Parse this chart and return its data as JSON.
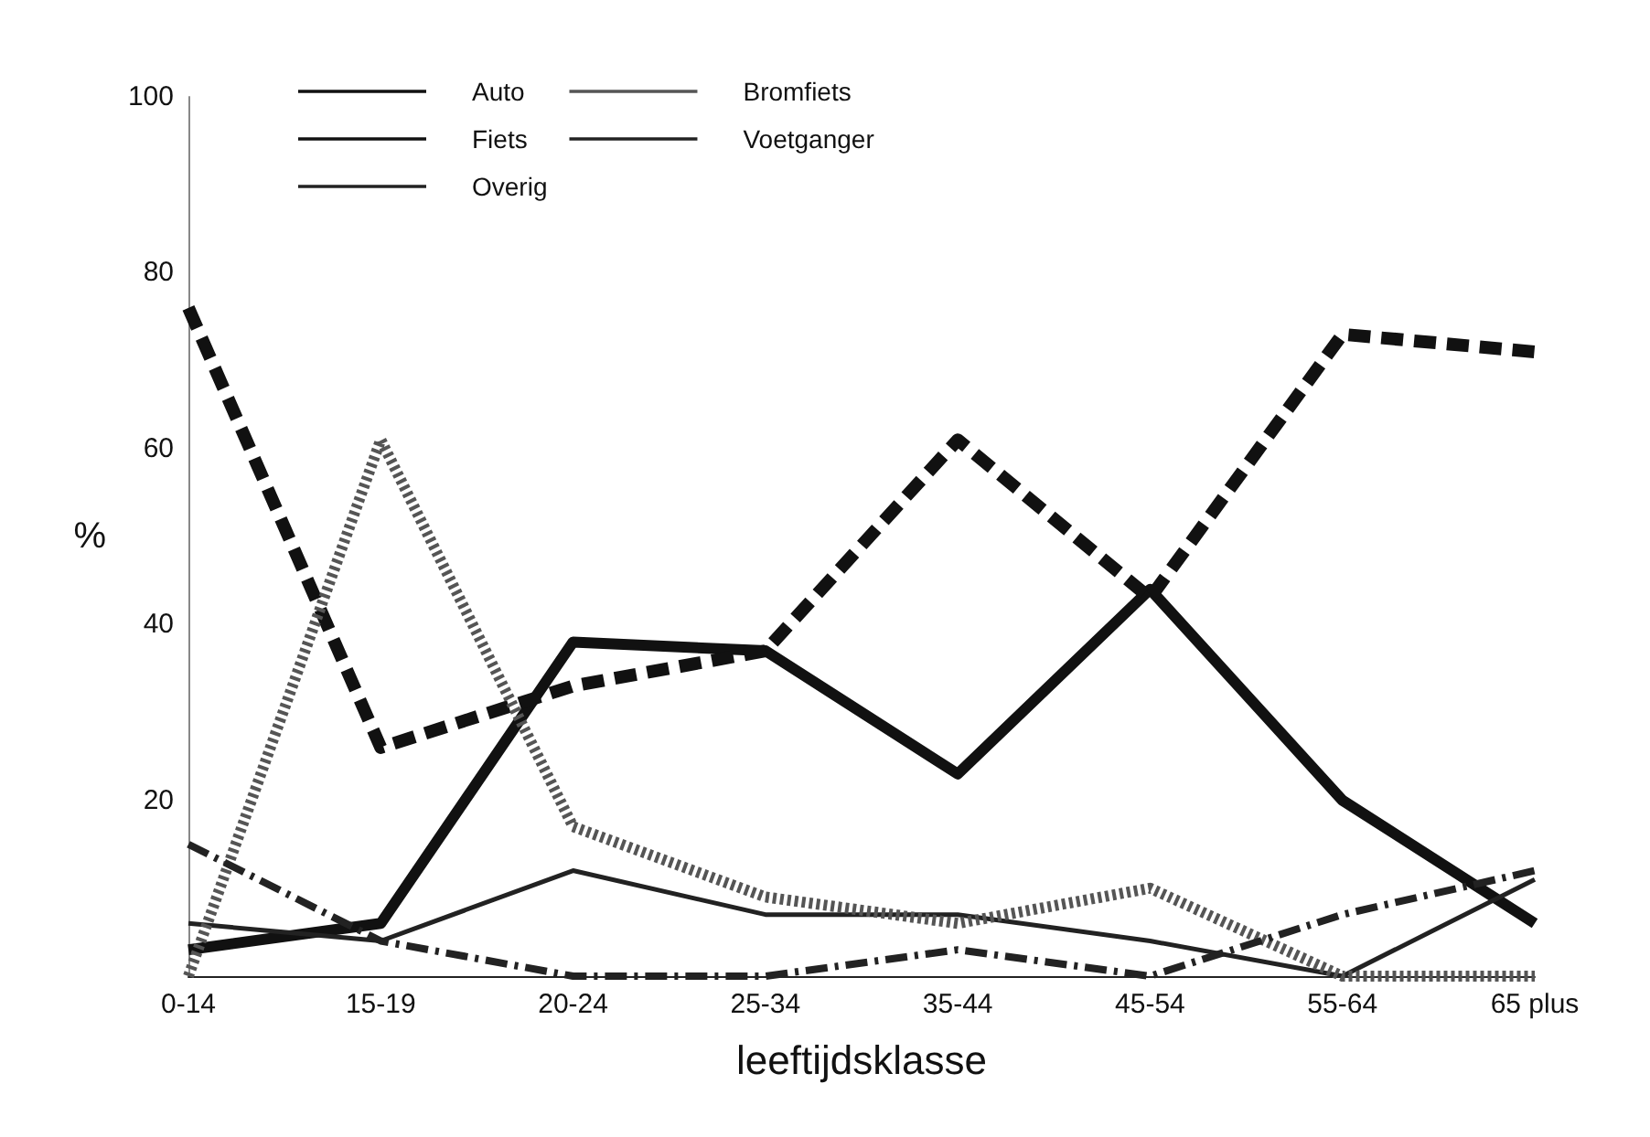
{
  "chart_data": {
    "type": "line",
    "xlabel": "leeftijdsklasse",
    "ylabel": "%",
    "categories": [
      "0-14",
      "15-19",
      "20-24",
      "25-34",
      "35-44",
      "45-54",
      "55-64",
      "65 plus"
    ],
    "series": [
      {
        "name": "Auto",
        "color": "#111111",
        "line_style": "solid",
        "values": [
          3,
          6,
          38,
          37,
          23,
          44,
          20,
          6
        ]
      },
      {
        "name": "Fiets",
        "color": "#111111",
        "line_style": "dashed",
        "values": [
          76,
          26,
          33,
          37,
          61,
          43,
          73,
          71
        ]
      },
      {
        "name": "Overig",
        "color": "#222222",
        "line_style": "solid",
        "values": [
          6,
          4,
          12,
          7,
          7,
          4,
          0,
          11
        ]
      },
      {
        "name": "Bromfiets",
        "color": "#555555",
        "line_style": "dotted",
        "values": [
          0,
          61,
          17,
          9,
          6,
          10,
          0,
          0
        ]
      },
      {
        "name": "Voetganger",
        "color": "#222222",
        "line_style": "dashed",
        "values": [
          15,
          4,
          0,
          0,
          3,
          0,
          7,
          12
        ]
      }
    ],
    "ylim": [
      0,
      100
    ],
    "yticks": [
      20,
      40,
      60,
      80,
      100
    ],
    "grid": false,
    "legend": "top left",
    "marker": "none"
  }
}
